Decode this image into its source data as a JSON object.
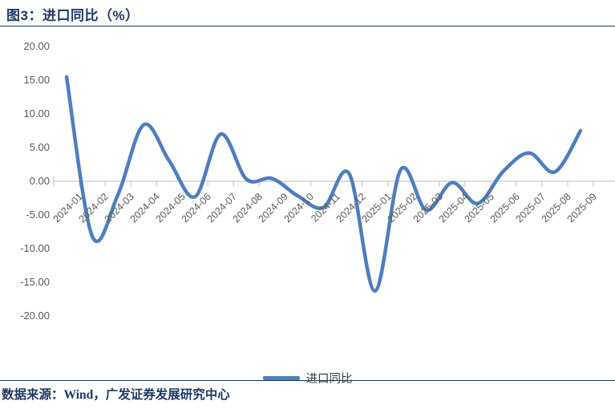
{
  "title": "图3：进口同比（%）",
  "legend": {
    "label": "进口同比"
  },
  "footer": {
    "source_text": "数据来源：Wind，广发证券发展研究中心"
  },
  "colors": {
    "line": "#4D7EBF",
    "axis_line": "#D4D4D4",
    "tick_mark": "#C9C9C9",
    "tick_label": "#595959",
    "title_text": "#1F3864",
    "divider": "#17375E"
  },
  "chart_data": {
    "type": "line",
    "title": "图3：进口同比（%）",
    "xlabel": "",
    "ylabel": "",
    "x": [
      "2024-01",
      "2024-02",
      "2024-03",
      "2024-04",
      "2024-05",
      "2024-06",
      "2024-07",
      "2024-08",
      "2024-09",
      "2024-10",
      "2024-11",
      "2024-12",
      "2025-01",
      "2025-02",
      "2025-03",
      "2025-04",
      "2025-05",
      "2025-06",
      "2025-07",
      "2025-08",
      "2025-09"
    ],
    "series": [
      {
        "name": "进口同比",
        "color": "#4D7EBF",
        "values": [
          15.5,
          -8.2,
          -2.0,
          8.4,
          3.0,
          -2.3,
          7.0,
          0.3,
          0.4,
          -2.2,
          -3.9,
          1.1,
          -16.3,
          1.7,
          -4.3,
          -0.2,
          -3.3,
          1.5,
          4.2,
          1.4,
          7.5
        ]
      }
    ],
    "ylim": [
      -20,
      20
    ],
    "ytick_labels": [
      "20.00",
      "15.00",
      "10.00",
      "5.00",
      "0.00",
      "-5.00",
      "-10.00",
      "-15.00",
      "-20.00"
    ],
    "grid": false,
    "smooth": true,
    "legend_position": "bottom-center"
  }
}
